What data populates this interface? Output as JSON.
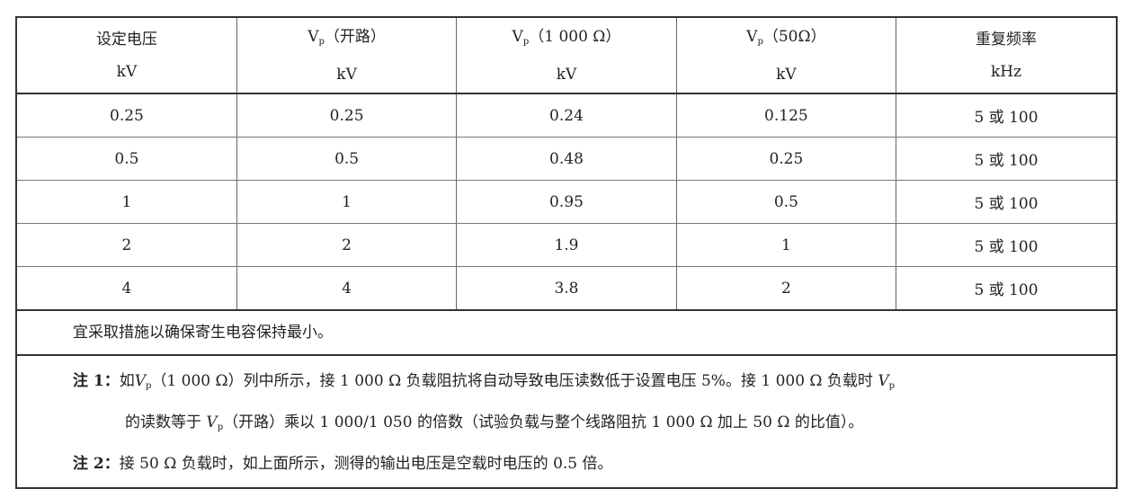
{
  "headers": [
    {
      "line1": "设定电压",
      "line2": "kV"
    },
    {
      "line1_pre": "V",
      "line1_sub": "p",
      "line1_post": "（开路）",
      "line2": "kV"
    },
    {
      "line1_pre": "V",
      "line1_sub": "p",
      "line1_post": "（1 000 Ω）",
      "line2": "kV"
    },
    {
      "line1_pre": "V",
      "line1_sub": "p",
      "line1_post": "（50Ω）",
      "line2": "kV"
    },
    {
      "line1": "重复频率",
      "line2": "kHz"
    }
  ],
  "rows": [
    [
      "0.25",
      "0.25",
      "0.24",
      "0.125",
      "5 或 100"
    ],
    [
      "0.5",
      "0.5",
      "0.48",
      "0.25",
      "5 或 100"
    ],
    [
      "1",
      "1",
      "0.95",
      "0.5",
      "5 或 100"
    ],
    [
      "2",
      "2",
      "1.9",
      "1",
      "5 或 100"
    ],
    [
      "4",
      "4",
      "3.8",
      "2",
      "5 或 100"
    ]
  ],
  "remark": "宜采取措施以确保寄生电容保持最小。",
  "note1": {
    "label": "注 1：",
    "a": "如",
    "v": "V",
    "sub": "p",
    "b": "（1 000 Ω）列中所示，接 1 000 Ω 负载阻抗将自动导致电压读数低于设置电压 5%。接 1 000 Ω 负载时 ",
    "v2": "V",
    "sub2": "p",
    "c": "的读数等于 ",
    "v3": "V",
    "sub3": "p",
    "d": "（开路）乘以 1 000/1 050 的倍数（试验负载与整个线路阻抗 1 000 Ω 加上 50 Ω 的比值）。"
  },
  "note2": {
    "label": "注 2：",
    "text": "接 50 Ω 负载时，如上面所示，测得的输出电压是空载时电压的 0.5 倍。"
  }
}
